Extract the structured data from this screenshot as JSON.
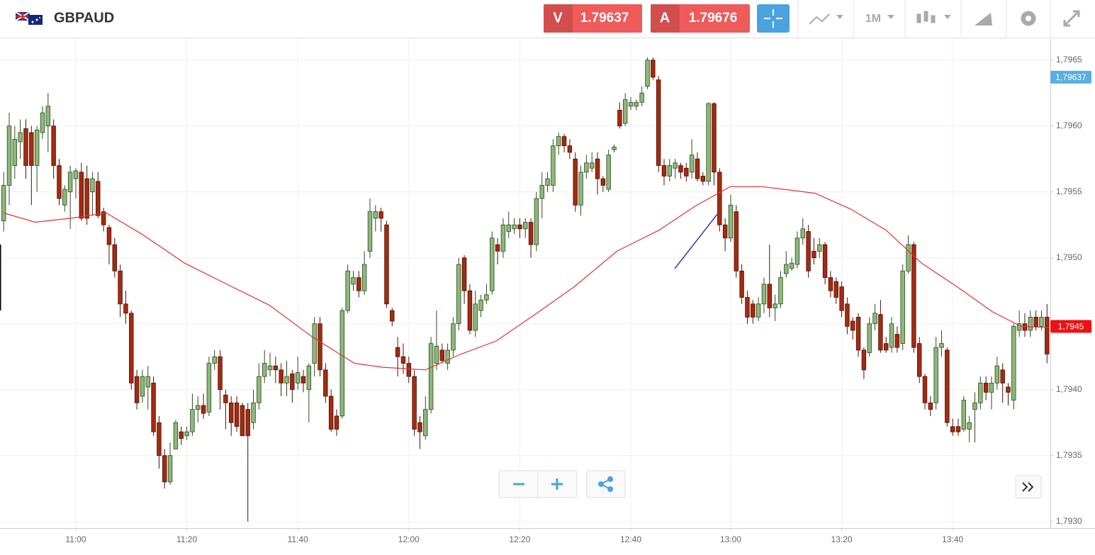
{
  "header": {
    "symbol": "GBPAUD",
    "sell_label": "V",
    "sell_price": "1.79637",
    "buy_label": "A",
    "buy_price": "1.79676",
    "timeframe": "1M"
  },
  "chart_data": {
    "type": "candlestick",
    "up_color": "#8cb87a",
    "down_color": "#a52a10",
    "xlim": [
      -0.66,
      188.6
    ],
    "xticks": [
      {
        "value": 13,
        "label": "11:00"
      },
      {
        "value": 33,
        "label": "11:20"
      },
      {
        "value": 53,
        "label": "11:40"
      },
      {
        "value": 73,
        "label": "12:00"
      },
      {
        "value": 93,
        "label": "12:20"
      },
      {
        "value": 113,
        "label": "12:40"
      },
      {
        "value": 131,
        "label": "13:00"
      },
      {
        "value": 151,
        "label": "13:20"
      },
      {
        "value": 171,
        "label": "13:40"
      }
    ],
    "ylim": [
      1.79295,
      1.79666
    ],
    "yticks": [
      {
        "value": 1.793,
        "label": "1,7930"
      },
      {
        "value": 1.7935,
        "label": "1,7935"
      },
      {
        "value": 1.794,
        "label": "1,7940"
      },
      {
        "value": 1.7945,
        "label": "1,7945"
      },
      {
        "value": 1.795,
        "label": "1,7950"
      },
      {
        "value": 1.7955,
        "label": "1,7955"
      },
      {
        "value": 1.796,
        "label": "1,7960"
      },
      {
        "value": 1.7965,
        "label": "1,7965"
      }
    ],
    "grid": true,
    "open": [
      1.79528,
      1.79555,
      1.7957,
      1.79588,
      1.79598,
      1.79595,
      1.7957,
      1.79595,
      1.796,
      1.796,
      1.7957,
      1.7954,
      1.7955,
      1.7956,
      1.79565,
      1.7956,
      1.7955,
      1.79558,
      1.79535,
      1.79523,
      1.7951,
      1.7949,
      1.79465,
      1.79458,
      1.7941,
      1.79395,
      1.79402,
      1.79405,
      1.79375,
      1.7935,
      1.7933,
      1.79355,
      1.79368,
      1.79365,
      1.79368,
      1.79385,
      1.79388,
      1.79383,
      1.7942,
      1.79425,
      1.79396,
      1.7939,
      1.7939,
      1.79388,
      1.79385,
      1.79375,
      1.7939,
      1.7941,
      1.79415,
      1.79418,
      1.79415,
      1.79405,
      1.79412,
      1.79405,
      1.7941,
      1.794,
      1.7942,
      1.7945,
      1.79415,
      1.79395,
      1.7938,
      1.7938,
      1.7946,
      1.7948,
      1.79485,
      1.79475,
      1.79505,
      1.7953,
      1.79535,
      1.79525,
      1.7946,
      1.79432,
      1.79425,
      1.7942,
      1.7941,
      1.79375,
      1.79365,
      1.79385,
      1.7942,
      1.7943,
      1.7942,
      1.7943,
      1.7945,
      1.795,
      1.79475,
      1.79445,
      1.7946,
      1.79468,
      1.79475,
      1.7951,
      1.79505,
      1.7952,
      1.79522,
      1.79525,
      1.79522,
      1.79527,
      1.7951,
      1.79545,
      1.79555,
      1.79555,
      1.79585,
      1.79592,
      1.79585,
      1.79575,
      1.7954,
      1.79565,
      1.79568,
      1.79575,
      1.7956,
      1.79552,
      1.79582,
      1.79612,
      1.79602,
      1.79615,
      1.79615,
      1.79618,
      1.7963,
      1.7965,
      1.79635,
      1.7957,
      1.79562,
      1.79568,
      1.7957,
      1.79568,
      1.79565,
      1.79575,
      1.79562,
      1.79558,
      1.79617,
      1.79565,
      1.79525,
      1.79515,
      1.79535,
      1.7949,
      1.7947,
      1.79465,
      1.79455,
      1.79465,
      1.7948,
      1.79462,
      1.79465,
      1.79488,
      1.79492,
      1.79495,
      1.79515,
      1.7952,
      1.79505,
      1.79505,
      1.7951,
      1.79485,
      1.79482,
      1.79478,
      1.79465,
      1.79452,
      1.79455,
      1.7943,
      1.79428,
      1.7945,
      1.79457,
      1.79435,
      1.79432,
      1.79442,
      1.79435,
      1.7949,
      1.7951,
      1.79435,
      1.7941,
      1.7939,
      1.7939,
      1.79432,
      1.7943,
      1.79372,
      1.79372,
      1.7937,
      1.7937,
      1.79385,
      1.7939,
      1.79405,
      1.79398,
      1.79405,
      1.79415,
      1.79402,
      1.79392,
      1.79445,
      1.7945,
      1.79445,
      1.79455,
      1.79448,
      1.79455
    ],
    "high": [
      1.79565,
      1.7961,
      1.796,
      1.79605,
      1.79605,
      1.796,
      1.796,
      1.79615,
      1.79625,
      1.79605,
      1.79575,
      1.79555,
      1.7957,
      1.79568,
      1.79572,
      1.7957,
      1.79565,
      1.79565,
      1.79538,
      1.79525,
      1.79515,
      1.79495,
      1.79475,
      1.7946,
      1.79415,
      1.79415,
      1.79418,
      1.7941,
      1.7938,
      1.79355,
      1.7936,
      1.79377,
      1.79372,
      1.79372,
      1.79397,
      1.79395,
      1.79397,
      1.79425,
      1.7943,
      1.7943,
      1.794,
      1.79395,
      1.79395,
      1.7939,
      1.7939,
      1.794,
      1.7942,
      1.7943,
      1.79428,
      1.79425,
      1.7942,
      1.79422,
      1.79415,
      1.79425,
      1.79415,
      1.7942,
      1.79455,
      1.79455,
      1.7942,
      1.794,
      1.79385,
      1.79462,
      1.79495,
      1.7949,
      1.7949,
      1.79505,
      1.79545,
      1.7954,
      1.79538,
      1.79528,
      1.79462,
      1.7944,
      1.79435,
      1.79425,
      1.79415,
      1.7938,
      1.79395,
      1.7944,
      1.7946,
      1.79435,
      1.79435,
      1.79455,
      1.795,
      1.79502,
      1.7948,
      1.79475,
      1.79472,
      1.7948,
      1.7952,
      1.79515,
      1.7953,
      1.79535,
      1.7953,
      1.7953,
      1.7953,
      1.7953,
      1.7955,
      1.79565,
      1.79565,
      1.7959,
      1.79595,
      1.79594,
      1.7959,
      1.7958,
      1.7957,
      1.79578,
      1.7958,
      1.7958,
      1.79562,
      1.79582,
      1.79586,
      1.79618,
      1.79625,
      1.79622,
      1.7962,
      1.7963,
      1.79652,
      1.79652,
      1.79638,
      1.79575,
      1.79575,
      1.79575,
      1.79572,
      1.79572,
      1.7959,
      1.7958,
      1.79565,
      1.79618,
      1.79618,
      1.79568,
      1.7953,
      1.79548,
      1.7954,
      1.79495,
      1.79475,
      1.79468,
      1.7947,
      1.79485,
      1.7951,
      1.79472,
      1.7949,
      1.79505,
      1.795,
      1.7952,
      1.7953,
      1.79525,
      1.79515,
      1.79515,
      1.79512,
      1.7949,
      1.79485,
      1.79482,
      1.7947,
      1.79455,
      1.79458,
      1.79432,
      1.79455,
      1.79465,
      1.79468,
      1.7944,
      1.79455,
      1.79448,
      1.79495,
      1.79517,
      1.79512,
      1.7944,
      1.79412,
      1.79395,
      1.7944,
      1.79445,
      1.79432,
      1.79378,
      1.79378,
      1.79395,
      1.7938,
      1.79398,
      1.7941,
      1.7941,
      1.7941,
      1.79425,
      1.7942,
      1.79405,
      1.7945,
      1.7946,
      1.79458,
      1.7946,
      1.7946,
      1.7946,
      1.79465
    ],
    "low": [
      1.7952,
      1.7954,
      1.7956,
      1.79575,
      1.7956,
      1.7954,
      1.7955,
      1.7959,
      1.7958,
      1.7956,
      1.7954,
      1.79535,
      1.79522,
      1.79545,
      1.79528,
      1.79525,
      1.79532,
      1.7953,
      1.7952,
      1.79495,
      1.79485,
      1.79455,
      1.7945,
      1.794,
      1.79385,
      1.7939,
      1.79385,
      1.79365,
      1.7934,
      1.79325,
      1.79328,
      1.79355,
      1.79358,
      1.79362,
      1.79365,
      1.79375,
      1.79378,
      1.7938,
      1.79415,
      1.79385,
      1.7937,
      1.79365,
      1.79368,
      1.79365,
      1.793,
      1.7937,
      1.79385,
      1.79405,
      1.7941,
      1.79405,
      1.79395,
      1.79395,
      1.7939,
      1.794,
      1.79398,
      1.79375,
      1.7941,
      1.7941,
      1.7939,
      1.79368,
      1.79365,
      1.79378,
      1.79458,
      1.79475,
      1.7947,
      1.79472,
      1.795,
      1.7952,
      1.7952,
      1.79462,
      1.79448,
      1.7941,
      1.79412,
      1.79405,
      1.79365,
      1.79355,
      1.79362,
      1.79382,
      1.79415,
      1.7942,
      1.79415,
      1.79425,
      1.79445,
      1.79465,
      1.79442,
      1.7944,
      1.79455,
      1.79465,
      1.79472,
      1.79495,
      1.795,
      1.79515,
      1.79518,
      1.79515,
      1.79515,
      1.795,
      1.79505,
      1.7953,
      1.7955,
      1.7955,
      1.79578,
      1.7958,
      1.79575,
      1.79535,
      1.79532,
      1.7956,
      1.79565,
      1.79548,
      1.7955,
      1.7955,
      1.7958,
      1.79598,
      1.796,
      1.79612,
      1.79612,
      1.79615,
      1.79628,
      1.79635,
      1.79565,
      1.79555,
      1.79558,
      1.7956,
      1.7956,
      1.79558,
      1.7956,
      1.79558,
      1.79555,
      1.79555,
      1.79555,
      1.7952,
      1.79505,
      1.79512,
      1.79485,
      1.79465,
      1.7945,
      1.7945,
      1.79452,
      1.79458,
      1.79455,
      1.79452,
      1.79462,
      1.79485,
      1.7949,
      1.79492,
      1.7951,
      1.79485,
      1.79495,
      1.795,
      1.7948,
      1.7947,
      1.79465,
      1.79455,
      1.79442,
      1.79438,
      1.79425,
      1.79408,
      1.79425,
      1.79445,
      1.79428,
      1.79428,
      1.79428,
      1.79428,
      1.7943,
      1.79488,
      1.79428,
      1.79405,
      1.79385,
      1.7938,
      1.79385,
      1.79425,
      1.79372,
      1.79365,
      1.79365,
      1.79368,
      1.7936,
      1.7936,
      1.79385,
      1.79392,
      1.79385,
      1.794,
      1.7939,
      1.79388,
      1.79385,
      1.7944,
      1.7944,
      1.7944,
      1.79445,
      1.79445,
      1.7942
    ],
    "close": [
      1.79555,
      1.796,
      1.7959,
      1.79595,
      1.7957,
      1.7957,
      1.79597,
      1.7961,
      1.79615,
      1.7957,
      1.79545,
      1.79552,
      1.79565,
      1.79566,
      1.7953,
      1.7953,
      1.7956,
      1.79532,
      1.79525,
      1.7951,
      1.7949,
      1.79465,
      1.79458,
      1.79405,
      1.7939,
      1.7941,
      1.7941,
      1.79368,
      1.7935,
      1.7933,
      1.7935,
      1.79375,
      1.79363,
      1.79368,
      1.79385,
      1.79388,
      1.79382,
      1.7942,
      1.79425,
      1.794,
      1.7939,
      1.79375,
      1.79372,
      1.79365,
      1.79365,
      1.7939,
      1.7941,
      1.7942,
      1.79418,
      1.79415,
      1.79405,
      1.7941,
      1.794,
      1.79413,
      1.79405,
      1.79418,
      1.7945,
      1.79415,
      1.79395,
      1.7937,
      1.7937,
      1.7946,
      1.7949,
      1.79485,
      1.79475,
      1.79495,
      1.79535,
      1.79535,
      1.7953,
      1.79465,
      1.79452,
      1.79425,
      1.7942,
      1.7941,
      1.7937,
      1.79368,
      1.79385,
      1.79435,
      1.79433,
      1.79422,
      1.7943,
      1.7945,
      1.79495,
      1.79475,
      1.79445,
      1.79465,
      1.79468,
      1.79472,
      1.79515,
      1.79505,
      1.79525,
      1.79525,
      1.79525,
      1.79522,
      1.79527,
      1.7951,
      1.79545,
      1.79555,
      1.7956,
      1.79585,
      1.79592,
      1.79585,
      1.7958,
      1.7954,
      1.79565,
      1.79572,
      1.79572,
      1.7956,
      1.79555,
      1.79578,
      1.79584,
      1.796,
      1.7962,
      1.79618,
      1.79618,
      1.79625,
      1.7965,
      1.79637,
      1.7957,
      1.79562,
      1.7957,
      1.79572,
      1.79565,
      1.79562,
      1.79578,
      1.7956,
      1.79558,
      1.79617,
      1.79565,
      1.79525,
      1.79515,
      1.7954,
      1.7949,
      1.7947,
      1.79455,
      1.79455,
      1.79465,
      1.7948,
      1.79462,
      1.79465,
      1.79485,
      1.79495,
      1.79496,
      1.79515,
      1.79522,
      1.7949,
      1.795,
      1.7951,
      1.79485,
      1.79475,
      1.7947,
      1.7946,
      1.79448,
      1.79445,
      1.7943,
      1.79415,
      1.7945,
      1.79458,
      1.7943,
      1.7943,
      1.7945,
      1.79432,
      1.7949,
      1.7951,
      1.79432,
      1.7941,
      1.7939,
      1.79385,
      1.79432,
      1.79435,
      1.79375,
      1.79368,
      1.79368,
      1.79392,
      1.79375,
      1.7939,
      1.79405,
      1.79398,
      1.79405,
      1.79418,
      1.79405,
      1.79398,
      1.79448,
      1.7945,
      1.79445,
      1.79455,
      1.79448,
      1.79455,
      1.79427
    ],
    "ma": {
      "color": "#e8312f",
      "x": [
        0,
        5.7,
        12.1,
        18.5,
        24.9,
        32.6,
        40.2,
        47.9,
        55.6,
        63.2,
        68.3,
        76,
        82.4,
        88.8,
        96.4,
        102.8,
        110.5,
        118.1,
        124.5,
        130.9,
        136.7,
        142.4,
        146.2,
        152.6,
        159,
        165.4,
        171.8,
        178.2,
        183.3,
        188.4
      ],
      "values": [
        1.79534,
        1.79527,
        1.7953,
        1.79534,
        1.79518,
        1.79496,
        1.7948,
        1.79464,
        1.7944,
        1.7942,
        1.79417,
        1.79415,
        1.79427,
        1.79437,
        1.79459,
        1.79478,
        1.79505,
        1.79521,
        1.79539,
        1.79554,
        1.79554,
        1.79551,
        1.79549,
        1.79537,
        1.79521,
        1.79496,
        1.79478,
        1.79459,
        1.79448,
        1.79447
      ]
    },
    "price_tags": [
      {
        "value": 1.79637,
        "label": "1,79637",
        "color": "#5aaee0"
      },
      {
        "value": 1.79448,
        "label": "1,7945",
        "color": "#ee1111"
      }
    ]
  }
}
